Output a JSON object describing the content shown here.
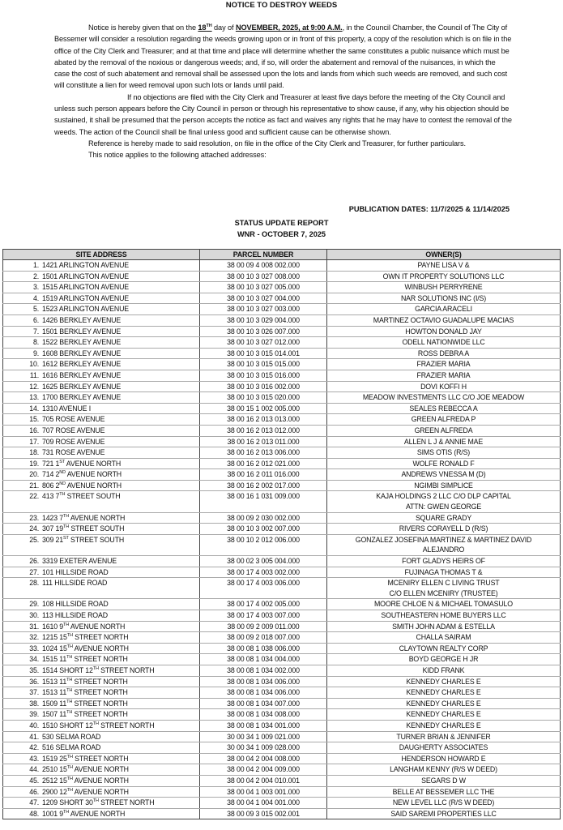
{
  "title": "NOTICE TO DESTROY WEEDS",
  "para1": {
    "a": "Notice is hereby given that on the ",
    "day": "18",
    "day_sup": "TH",
    "b": " day of ",
    "date": "NOVEMBER,  2025, at 9:00 A.M.",
    "c": ", in the Council Chamber, the Council of The City of Bessemer will consider a resolution regarding the weeds growing upon or in front of this property, a copy of the resolution which is on file in the office of the City Clerk and Treasurer; and at that time and place will determine whether the same constitutes a public nuisance which must be abated by the removal of the noxious or dangerous weeds; and, if so, will order the abatement and removal of the nuisances, in which the case the cost of such abatement and removal shall be assessed upon the lots and lands from which such weeds are removed, and such cost will constitute a lien for weed removal upon such lots or lands until paid."
  },
  "para2": "If no objections are filed with the City Clerk and Treasurer at least five days before the meeting of the City Council and unless such person appears before the City Council in person or through his representative to show cause, if any, why his objection should be sustained, it shall be presumed that the person accepts the notice as fact and waives any rights that he may have to contest the removal of the weeds.  The action of the Council shall be final unless good and sufficient cause can be otherwise shown.",
  "para3": "Reference is hereby made to said resolution, on file in the office of the City Clerk and Treasurer, for further particulars.",
  "para4": "This notice applies to the following attached addresses:",
  "publication": "PUBLICATION DATES: 11/7/2025 & 11/14/2025",
  "status_title": "STATUS UPDATE REPORT",
  "status_sub": "WNR - OCTOBER 7, 2025",
  "table": {
    "headers": [
      "SITE ADDRESS",
      "PARCEL NUMBER",
      "OWNER(S)"
    ],
    "rows": [
      {
        "n": "1.",
        "addr": [
          "1421 ARLINGTON AVENUE"
        ],
        "parcel": "38 00 09 4 008 002.000",
        "owner": [
          "PAYNE LISA V &"
        ]
      },
      {
        "n": "2.",
        "addr": [
          "1501 ARLINGTON AVENUE"
        ],
        "parcel": "38 00 10 3 027 008.000",
        "owner": [
          "OWN IT PROPERTY SOLUTIONS LLC"
        ]
      },
      {
        "n": "3.",
        "addr": [
          "1515 ARLINGTON AVENUE"
        ],
        "parcel": "38 00 10 3 027 005.000",
        "owner": [
          "WINBUSH PERRYRENE"
        ]
      },
      {
        "n": "4.",
        "addr": [
          "1519 ARLINGTON AVENUE"
        ],
        "parcel": "38 00 10 3 027 004.000",
        "owner": [
          "NAR SOLUTIONS INC (I/S)"
        ]
      },
      {
        "n": "5.",
        "addr": [
          "1523 ARLINGTON AVENUE"
        ],
        "parcel": "38 00 10 3 027 003.000",
        "owner": [
          "GARCIA ARACELI"
        ]
      },
      {
        "n": "6.",
        "addr": [
          "1426 BERKLEY AVENUE"
        ],
        "parcel": "38 00 10 3 029 004.000",
        "owner": [
          "MARTINEZ OCTAVIO GUADALUPE MACIAS"
        ]
      },
      {
        "n": "7.",
        "addr": [
          "1501 BERKLEY AVENUE"
        ],
        "parcel": "38 00 10 3 026 007.000",
        "owner": [
          "HOWTON DONALD JAY"
        ]
      },
      {
        "n": "8.",
        "addr": [
          "1522 BERKLEY AVENUE"
        ],
        "parcel": "38 00 10 3 027 012.000",
        "owner": [
          "ODELL NATIONWIDE LLC"
        ]
      },
      {
        "n": "9.",
        "addr": [
          "1608 BERKLEY AVENUE"
        ],
        "parcel": "38 00 10 3 015 014.001",
        "owner": [
          "ROSS DEBRA A"
        ]
      },
      {
        "n": "10.",
        "addr": [
          "1612 BERKLEY AVENUE"
        ],
        "parcel": "38 00 10 3 015 015.000",
        "owner": [
          "FRAZIER MARIA"
        ]
      },
      {
        "n": "11.",
        "addr": [
          "1616 BERKLEY AVENUE"
        ],
        "parcel": "38 00 10 3 015 016.000",
        "owner": [
          "FRAZIER MARIA"
        ]
      },
      {
        "n": "12.",
        "addr": [
          "1625 BERKLEY AVENUE"
        ],
        "parcel": "38 00 10 3 016 002.000",
        "owner": [
          "DOVI KOFFI H"
        ]
      },
      {
        "n": "13.",
        "addr": [
          "1700 BERKLEY AVENUE"
        ],
        "parcel": "38 00 10 3 015 020.000",
        "owner": [
          "MEADOW INVESTMENTS LLC C/O JOE MEADOW"
        ]
      },
      {
        "n": "14.",
        "addr": [
          "1310 AVENUE I"
        ],
        "parcel": "38 00 15 1 002 005.000",
        "owner": [
          "SEALES REBECCA A"
        ]
      },
      {
        "n": "15.",
        "addr": [
          "705 ROSE AVENUE"
        ],
        "parcel": "38 00 16 2 013 013.000",
        "owner": [
          "GREEN ALFREDA P"
        ]
      },
      {
        "n": "16.",
        "addr": [
          "707 ROSE AVENUE"
        ],
        "parcel": "38 00 16 2 013 012.000",
        "owner": [
          "GREEN ALFREDA"
        ]
      },
      {
        "n": "17.",
        "addr": [
          "709 ROSE AVENUE"
        ],
        "parcel": "38 00 16 2 013 011.000",
        "owner": [
          "ALLEN L J & ANNIE MAE"
        ]
      },
      {
        "n": "18.",
        "addr": [
          "731 ROSE AVENUE"
        ],
        "parcel": "38 00 16 2 013 006.000",
        "owner": [
          "SIMS OTIS (R/S)"
        ]
      },
      {
        "n": "19.",
        "addr": [
          "721 1",
          "ST",
          " AVENUE NORTH"
        ],
        "parcel": "38 00 16 2 012 021.000",
        "owner": [
          "WOLFE RONALD F"
        ]
      },
      {
        "n": "20.",
        "addr": [
          "714 2",
          "ND",
          " AVENUE NORTH"
        ],
        "parcel": "38 00 16 2 011 016.000",
        "owner": [
          "ANDREWS VNESSA M (D)"
        ]
      },
      {
        "n": "21.",
        "addr": [
          "806 2",
          "ND",
          " AVENUE NORTH"
        ],
        "parcel": "38 00 16 2 002 017.000",
        "owner": [
          "NGIMBI SIMPLICE"
        ]
      },
      {
        "n": "22.",
        "addr": [
          "413 7",
          "TH",
          " STREET SOUTH"
        ],
        "parcel": "38 00 16 1 031 009.000",
        "owner": [
          "KAJA HOLDINGS 2 LLC C/O DLP CAPITAL",
          "ATTN: GWEN GEORGE"
        ]
      },
      {
        "n": "23.",
        "addr": [
          "1423 7",
          "TH",
          " AVENUE NORTH"
        ],
        "parcel": "38 00 09 2 030 002.000",
        "owner": [
          "SQUARE GRADY"
        ]
      },
      {
        "n": "24.",
        "addr": [
          "307 19",
          "TH",
          " STREET SOUTH"
        ],
        "parcel": "38 00 10 3 002 007.000",
        "owner": [
          "RIVERS CORAYELL D (R/S)"
        ]
      },
      {
        "n": "25.",
        "addr": [
          "309 21",
          "ST",
          " STREET SOUTH"
        ],
        "parcel": "38 00 10 2 012 006.000",
        "owner": [
          "GONZALEZ JOSEFINA MARTINEZ & MARTINEZ DAVID",
          "ALEJANDRO"
        ]
      },
      {
        "n": "26.",
        "addr": [
          "3319 EXETER AVENUE"
        ],
        "parcel": "38 00 02 3 005 004.000",
        "owner": [
          "FORT GLADYS HEIRS OF"
        ]
      },
      {
        "n": "27.",
        "addr": [
          "101 HILLSIDE ROAD"
        ],
        "parcel": "38 00 17 4 003 002.000",
        "owner": [
          "FUJINAGA THOMAS T &"
        ]
      },
      {
        "n": "28.",
        "addr": [
          "111 HILLSIDE ROAD"
        ],
        "parcel": "38 00 17 4 003 006.000",
        "owner": [
          "MCENIRY ELLEN C LIVING TRUST",
          "C/O ELLEN MCENIRY (TRUSTEE)"
        ]
      },
      {
        "n": "29.",
        "addr": [
          "108 HILLSIDE ROAD"
        ],
        "parcel": "38 00 17 4 002 005.000",
        "owner": [
          "MOORE CHLOE N & MICHAEL TOMASULO"
        ]
      },
      {
        "n": "30.",
        "addr": [
          "113 HILLSIDE ROAD"
        ],
        "parcel": "38 00 17 4 003 007.000",
        "owner": [
          "SOUTHEASTERN HOME BUYERS LLC"
        ]
      },
      {
        "n": "31.",
        "addr": [
          "1610 9",
          "TH",
          " AVENUE NORTH"
        ],
        "parcel": "38 00 09 2 009 011.000",
        "owner": [
          "SMITH JOHN ADAM & ESTELLA"
        ]
      },
      {
        "n": "32.",
        "addr": [
          "1215 15",
          "TH",
          " STREET NORTH"
        ],
        "parcel": "38 00 09 2 018 007.000",
        "owner": [
          "CHALLA SAIRAM"
        ]
      },
      {
        "n": "33.",
        "addr": [
          "1024 15",
          "TH",
          " AVENUE NORTH"
        ],
        "parcel": "38 00 08 1 038 006.000",
        "owner": [
          "CLAYTOWN REALTY CORP"
        ]
      },
      {
        "n": "34.",
        "addr": [
          "1515 11",
          "TH",
          " STREET NORTH"
        ],
        "parcel": "38 00 08 1 034 004.000",
        "owner": [
          "BOYD GEORGE H JR"
        ]
      },
      {
        "n": "35.",
        "addr": [
          "1514 SHORT 12",
          "TH",
          " STREET NORTH"
        ],
        "parcel": "38 00 08 1 034 002.000",
        "owner": [
          "KIDD FRANK"
        ]
      },
      {
        "n": "36.",
        "addr": [
          "1513 11",
          "TH",
          " STREET NORTH"
        ],
        "parcel": "38 00 08 1 034 006.000",
        "owner": [
          "KENNEDY CHARLES E"
        ]
      },
      {
        "n": "37.",
        "addr": [
          "1513 11",
          "TH",
          " STREET NORTH"
        ],
        "parcel": "38 00 08 1 034 006.000",
        "owner": [
          "KENNEDY CHARLES E"
        ]
      },
      {
        "n": "38.",
        "addr": [
          "1509 11",
          "TH",
          " STREET NORTH"
        ],
        "parcel": "38 00 08 1 034 007.000",
        "owner": [
          "KENNEDY CHARLES E"
        ]
      },
      {
        "n": "39.",
        "addr": [
          "1507 11",
          "TH",
          " STREET NORTH"
        ],
        "parcel": "38 00 08 1 034 008.000",
        "owner": [
          "KENNEDY CHARLES E"
        ]
      },
      {
        "n": "40.",
        "addr": [
          "1510 SHORT 12",
          "TH",
          " STREET NORTH"
        ],
        "parcel": "38 00 08 1 034 001.000",
        "owner": [
          "KENNEDY CHARLES E"
        ]
      },
      {
        "n": "41.",
        "addr": [
          "530 SELMA ROAD"
        ],
        "parcel": "30 00 34 1 009 021.000",
        "owner": [
          "TURNER BRIAN & JENNIFER"
        ]
      },
      {
        "n": "42.",
        "addr": [
          "516 SELMA ROAD"
        ],
        "parcel": "30 00 34 1 009 028.000",
        "owner": [
          "DAUGHERTY ASSOCIATES"
        ]
      },
      {
        "n": "43.",
        "addr": [
          "1519 25",
          "TH",
          " STREET NORTH"
        ],
        "parcel": "38 00 04 2 004 008.000",
        "owner": [
          "HENDERSON HOWARD E"
        ]
      },
      {
        "n": "44.",
        "addr": [
          "2510 15",
          "TH",
          " AVENUE NORTH"
        ],
        "parcel": "38 00 04 2 004 009.000",
        "owner": [
          "LANGHAM KENNY (R/S W DEED)"
        ]
      },
      {
        "n": "45.",
        "addr": [
          "2512 15",
          "TH",
          " AVENUE NORTH"
        ],
        "parcel": "38 00 04 2 004 010.001",
        "owner": [
          "SEGARS D W"
        ]
      },
      {
        "n": "46.",
        "addr": [
          "2900 12",
          "TH",
          " AVENUE NORTH"
        ],
        "parcel": "38 00 04 1 003 001.000",
        "owner": [
          "BELLE AT BESSEMER LLC THE"
        ]
      },
      {
        "n": "47.",
        "addr": [
          "1209 SHORT 30",
          "TH",
          " STREET NORTH"
        ],
        "parcel": "38 00 04 1 004 001.000",
        "owner": [
          "NEW LEVEL LLC (R/S W DEED)"
        ]
      },
      {
        "n": "48.",
        "addr": [
          "1001 9",
          "TH",
          " AVENUE NORTH"
        ],
        "parcel": "38 00 09 3 015 002.001",
        "owner": [
          "SAID SAREMI PROPERTIES LLC"
        ]
      }
    ]
  }
}
